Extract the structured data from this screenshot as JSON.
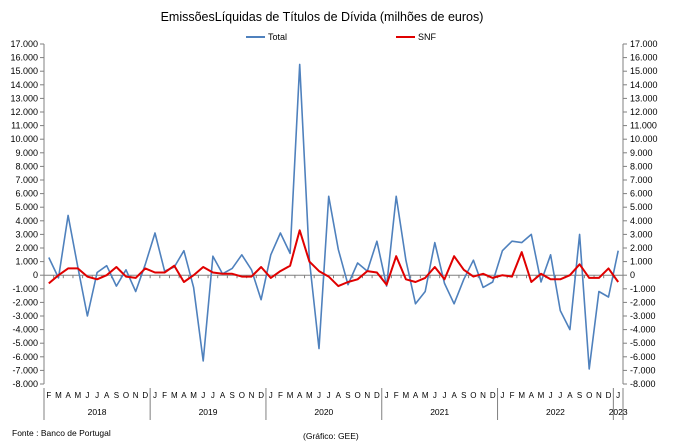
{
  "chart_data": {
    "type": "line",
    "title": "EmissõesLíquidas de Títulos de Dívida (milhões de euros)",
    "xlabel": "",
    "ylabel": "",
    "ylim": [
      -8000,
      17000
    ],
    "y_ticks": [
      "17.000",
      "16.000",
      "15.000",
      "14.000",
      "13.000",
      "12.000",
      "11.000",
      "10.000",
      "9.000",
      "8.000",
      "7.000",
      "6.000",
      "5.000",
      "4.000",
      "3.000",
      "2.000",
      "1.000",
      "0",
      "-1.000",
      "-2.000",
      "-3.000",
      "-4.000",
      "-5.000",
      "-6.000",
      "-7.000",
      "-8.000"
    ],
    "y_tick_values": [
      17000,
      16000,
      15000,
      14000,
      13000,
      12000,
      11000,
      10000,
      9000,
      8000,
      7000,
      6000,
      5000,
      4000,
      3000,
      2000,
      1000,
      0,
      -1000,
      -2000,
      -3000,
      -4000,
      -5000,
      -6000,
      -7000,
      -8000
    ],
    "grid": false,
    "legend_position": "top-center",
    "month_labels": [
      "F",
      "M",
      "A",
      "M",
      "J",
      "J",
      "A",
      "S",
      "O",
      "N",
      "D",
      "J",
      "F",
      "M",
      "A",
      "M",
      "J",
      "J",
      "A",
      "S",
      "O",
      "N",
      "D",
      "J",
      "F",
      "M",
      "A",
      "M",
      "J",
      "J",
      "A",
      "S",
      "O",
      "N",
      "D",
      "J",
      "F",
      "M",
      "A",
      "M",
      "J",
      "J",
      "A",
      "S",
      "O",
      "N",
      "D",
      "J",
      "F",
      "M",
      "A",
      "M",
      "J",
      "J",
      "A",
      "S",
      "O",
      "N",
      "D",
      "J"
    ],
    "years": [
      {
        "label": "2018",
        "start": 0,
        "end": 11
      },
      {
        "label": "2019",
        "start": 11,
        "end": 23
      },
      {
        "label": "2020",
        "start": 23,
        "end": 35
      },
      {
        "label": "2021",
        "start": 35,
        "end": 47
      },
      {
        "label": "2022",
        "start": 47,
        "end": 59
      },
      {
        "label": "2023",
        "start": 59,
        "end": 60
      }
    ],
    "series": [
      {
        "name": "Total",
        "color": "#4f81bd",
        "values": [
          1300,
          -200,
          4400,
          600,
          -3000,
          200,
          700,
          -800,
          400,
          -1200,
          800,
          3100,
          300,
          600,
          1800,
          -900,
          -6300,
          1400,
          100,
          500,
          1500,
          400,
          -1800,
          1500,
          3100,
          1600,
          15500,
          1100,
          -5400,
          5800,
          1900,
          -700,
          900,
          300,
          2500,
          -800,
          5800,
          1100,
          -2100,
          -1200,
          2400,
          -600,
          -2100,
          -300,
          1100,
          -900,
          -500,
          1800,
          2500,
          2400,
          3000,
          -500,
          1500,
          -2600,
          -4000,
          3000,
          -6900,
          -1200,
          -1600,
          1800
        ]
      },
      {
        "name": "SNF",
        "color": "#e00000",
        "values": [
          -600,
          0,
          500,
          500,
          -100,
          -300,
          0,
          600,
          -100,
          -200,
          500,
          200,
          200,
          700,
          -500,
          0,
          600,
          200,
          100,
          100,
          -100,
          -100,
          600,
          -200,
          300,
          700,
          3300,
          1000,
          300,
          -100,
          -800,
          -500,
          -300,
          300,
          200,
          -700,
          1400,
          -300,
          -500,
          -200,
          600,
          -300,
          1400,
          400,
          -100,
          100,
          -200,
          0,
          -100,
          1700,
          -500,
          100,
          -300,
          -300,
          0,
          800,
          -200,
          -200,
          500,
          -500
        ]
      }
    ]
  },
  "footer": {
    "source": "Fonte : Banco de Portugal",
    "credit": "(Gráfico: GEE)"
  }
}
